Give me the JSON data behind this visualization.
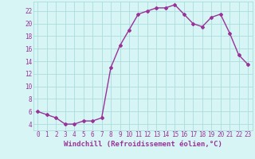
{
  "x": [
    0,
    1,
    2,
    3,
    4,
    5,
    6,
    7,
    8,
    9,
    10,
    11,
    12,
    13,
    14,
    15,
    16,
    17,
    18,
    19,
    20,
    21,
    22,
    23
  ],
  "y": [
    6,
    5.5,
    5,
    4,
    4,
    4.5,
    4.5,
    5,
    13,
    16.5,
    19,
    21.5,
    22,
    22.5,
    22.5,
    23,
    21.5,
    20,
    19.5,
    21,
    21.5,
    18.5,
    15,
    13.5
  ],
  "line_color": "#993399",
  "marker": "D",
  "marker_size": 2,
  "linewidth": 1.0,
  "background_color": "#d8f5f5",
  "grid_color": "#aadddd",
  "xlabel": "Windchill (Refroidissement éolien,°C)",
  "xlabel_color": "#993399",
  "xlabel_fontsize": 6.5,
  "xtick_labels": [
    "0",
    "1",
    "2",
    "3",
    "4",
    "5",
    "6",
    "7",
    "8",
    "9",
    "10",
    "11",
    "12",
    "13",
    "14",
    "15",
    "16",
    "17",
    "18",
    "19",
    "20",
    "21",
    "22",
    "23"
  ],
  "ytick_labels": [
    "4",
    "6",
    "8",
    "10",
    "12",
    "14",
    "16",
    "18",
    "20",
    "22"
  ],
  "ytick_vals": [
    4,
    6,
    8,
    10,
    12,
    14,
    16,
    18,
    20,
    22
  ],
  "ylim": [
    3.0,
    23.5
  ],
  "xlim": [
    -0.5,
    23.5
  ],
  "tick_color": "#993399",
  "tick_fontsize": 5.5
}
